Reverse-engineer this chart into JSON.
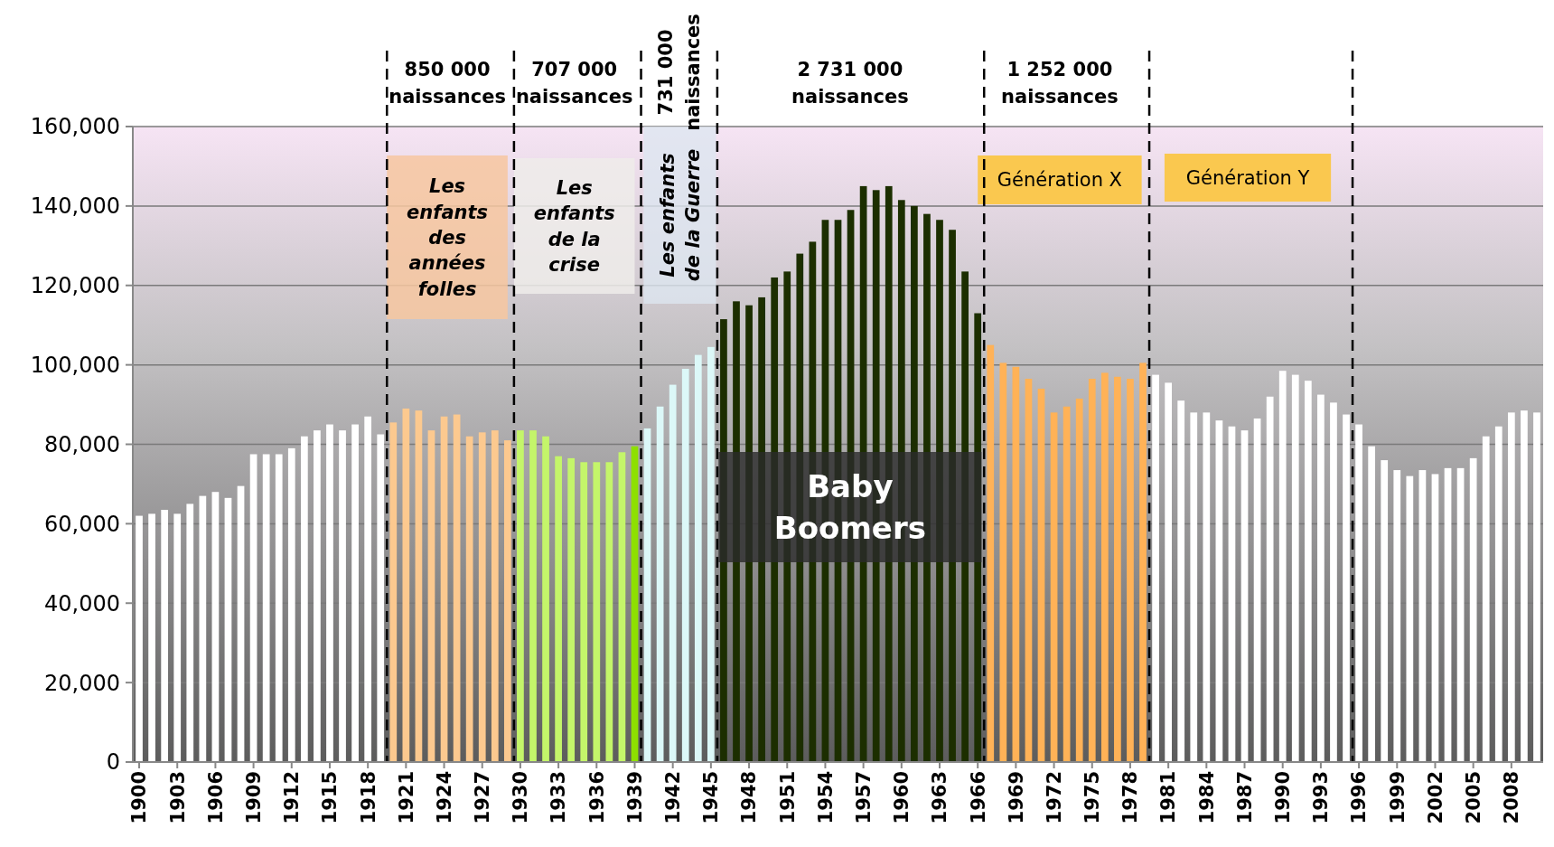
{
  "chart_data": {
    "type": "bar",
    "x": [
      1900,
      1901,
      1902,
      1903,
      1904,
      1905,
      1906,
      1907,
      1908,
      1909,
      1910,
      1911,
      1912,
      1913,
      1914,
      1915,
      1916,
      1917,
      1918,
      1919,
      1920,
      1921,
      1922,
      1923,
      1924,
      1925,
      1926,
      1927,
      1928,
      1929,
      1930,
      1931,
      1932,
      1933,
      1934,
      1935,
      1936,
      1937,
      1938,
      1939,
      1940,
      1941,
      1942,
      1943,
      1944,
      1945,
      1946,
      1947,
      1948,
      1949,
      1950,
      1951,
      1952,
      1953,
      1954,
      1955,
      1956,
      1957,
      1958,
      1959,
      1960,
      1961,
      1962,
      1963,
      1964,
      1965,
      1966,
      1967,
      1968,
      1969,
      1970,
      1971,
      1972,
      1973,
      1974,
      1975,
      1976,
      1977,
      1978,
      1979,
      1980,
      1981,
      1982,
      1983,
      1984,
      1985,
      1986,
      1987,
      1988,
      1989,
      1990,
      1991,
      1992,
      1993,
      1994,
      1995,
      1996,
      1997,
      1998,
      1999,
      2000,
      2001,
      2002,
      2003,
      2004,
      2005,
      2006,
      2007,
      2008,
      2009,
      2010
    ],
    "values": [
      62000,
      62500,
      63500,
      62500,
      65000,
      67000,
      68000,
      66500,
      69500,
      77500,
      77500,
      77500,
      79000,
      82000,
      83500,
      85000,
      83500,
      85000,
      87000,
      82500,
      85500,
      89000,
      88500,
      83500,
      87000,
      87500,
      82000,
      83000,
      83500,
      81000,
      83500,
      83500,
      82000,
      77000,
      76500,
      75500,
      75500,
      75500,
      78000,
      79500,
      84000,
      89500,
      95000,
      99000,
      102500,
      104500,
      111500,
      116000,
      115000,
      117000,
      122000,
      123500,
      128000,
      131000,
      136500,
      136500,
      139000,
      145000,
      144000,
      145000,
      141500,
      140000,
      138000,
      136500,
      134000,
      123500,
      113000,
      105000,
      100500,
      99500,
      96500,
      94000,
      88000,
      89500,
      91500,
      96500,
      98000,
      97000,
      96500,
      100500,
      97500,
      95500,
      91000,
      88000,
      88000,
      86000,
      84500,
      83500,
      86500,
      92000,
      98500,
      97500,
      96000,
      92500,
      90500,
      87500,
      85000,
      79500,
      76000,
      73500,
      72000,
      73500,
      72500,
      74000,
      74000,
      76500,
      82000,
      84500,
      88000,
      88500,
      88000
    ],
    "colors": [
      "#ffffff",
      "#ffffff",
      "#ffffff",
      "#ffffff",
      "#ffffff",
      "#ffffff",
      "#ffffff",
      "#ffffff",
      "#ffffff",
      "#ffffff",
      "#ffffff",
      "#ffffff",
      "#ffffff",
      "#ffffff",
      "#ffffff",
      "#ffffff",
      "#ffffff",
      "#ffffff",
      "#ffffff",
      "#ffffff",
      "#fcc98f",
      "#fcc98f",
      "#fcc98f",
      "#fcc98f",
      "#fcc98f",
      "#fcc98f",
      "#fcc98f",
      "#fcc98f",
      "#fcc98f",
      "#fcc98f",
      "#c4f56a",
      "#c4f56a",
      "#c4f56a",
      "#c4f56a",
      "#c4f56a",
      "#c4f56a",
      "#c4f56a",
      "#c4f56a",
      "#c4f56a",
      "#8ee000",
      "#dcf8f8",
      "#dcf8f8",
      "#dcf8f8",
      "#dcf8f8",
      "#dcf8f8",
      "#dcf8f8",
      "#1c2e00",
      "#1c2e00",
      "#1c2e00",
      "#1c2e00",
      "#1c2e00",
      "#1c2e00",
      "#1c2e00",
      "#1c2e00",
      "#1c2e00",
      "#1c2e00",
      "#1c2e00",
      "#1c2e00",
      "#1c2e00",
      "#1c2e00",
      "#1c2e00",
      "#1c2e00",
      "#1c2e00",
      "#1c2e00",
      "#1c2e00",
      "#1c2e00",
      "#1c2e00",
      "#ffb257",
      "#ffb257",
      "#ffb257",
      "#ffb257",
      "#ffb257",
      "#ffb257",
      "#ffb257",
      "#ffb257",
      "#ffb257",
      "#ffb257",
      "#ffb257",
      "#ffb257",
      "#ffb257",
      "#ffffff",
      "#ffffff",
      "#ffffff",
      "#ffffff",
      "#ffffff",
      "#ffffff",
      "#ffffff",
      "#ffffff",
      "#ffffff",
      "#ffffff",
      "#ffffff",
      "#ffffff",
      "#ffffff",
      "#ffffff",
      "#ffffff",
      "#ffffff",
      "#ffffff",
      "#ffffff",
      "#ffffff",
      "#ffffff",
      "#ffffff",
      "#ffffff",
      "#ffffff",
      "#ffffff",
      "#ffffff",
      "#ffffff",
      "#ffffff",
      "#ffffff",
      "#ffffff",
      "#ffffff",
      "#ffffff"
    ],
    "xlim": [
      1899.5,
      2010.5
    ],
    "xticks": [
      1900,
      1903,
      1906,
      1909,
      1912,
      1915,
      1918,
      1921,
      1924,
      1927,
      1930,
      1933,
      1936,
      1939,
      1942,
      1945,
      1948,
      1951,
      1954,
      1957,
      1960,
      1963,
      1966,
      1969,
      1972,
      1975,
      1978,
      1981,
      1984,
      1987,
      1990,
      1993,
      1996,
      1999,
      2002,
      2005,
      2008
    ],
    "ylim": [
      0,
      160000
    ],
    "yticks": [
      {
        "value": 0,
        "label": "0"
      },
      {
        "value": 20000,
        "label": "20,000"
      },
      {
        "value": 40000,
        "label": "40,000"
      },
      {
        "value": 60000,
        "label": "60,000"
      },
      {
        "value": 80000,
        "label": "80,000"
      },
      {
        "value": 100000,
        "label": "100,000"
      },
      {
        "value": 120000,
        "label": "120,000"
      },
      {
        "value": 140000,
        "label": "140,000"
      },
      {
        "value": 160000,
        "label": "160,000"
      }
    ],
    "grid": "y",
    "ref_lines": [
      {
        "axis": "x",
        "value": 1919.5,
        "color": "#000000",
        "line_style": "dashed"
      },
      {
        "axis": "x",
        "value": 1929.5,
        "color": "#000000",
        "line_style": "dashed"
      },
      {
        "axis": "x",
        "value": 1939.5,
        "color": "#000000",
        "line_style": "dashed"
      },
      {
        "axis": "x",
        "value": 1945.5,
        "color": "#000000",
        "line_style": "dashed"
      },
      {
        "axis": "x",
        "value": 1966.5,
        "color": "#000000",
        "line_style": "dashed"
      },
      {
        "axis": "x",
        "value": 1979.5,
        "color": "#000000",
        "line_style": "dashed"
      },
      {
        "axis": "x",
        "value": 1995.5,
        "color": "#000000",
        "line_style": "dashed"
      }
    ],
    "bands": [
      {
        "axis": "x",
        "from": 1919.5,
        "to": 1929,
        "label": "Les enfants des années folles",
        "color": "#f7c7a0"
      },
      {
        "axis": "x",
        "from": 1929.5,
        "to": 1939,
        "label": "Les enfants de la crise",
        "color": "#eeecea"
      },
      {
        "axis": "x",
        "from": 1939.7,
        "to": 1945.4,
        "label": "Les enfants de la Guerre",
        "color": "#dde6f0"
      },
      {
        "axis": "x",
        "from": 1945.6,
        "to": 1966.3,
        "label": "Baby Boomers",
        "color": "#2a2a2a"
      },
      {
        "axis": "x",
        "from": 1966,
        "to": 1978.9,
        "label": "Génération X",
        "color": "#fac84f"
      },
      {
        "axis": "x",
        "from": 1980.7,
        "to": 1993.8,
        "label": "Génération Y",
        "color": "#fac84f"
      }
    ],
    "annotations": [
      "850 000 naissances",
      "707 000 naissances",
      "731 000 naissances",
      "2 731 000 naissances",
      "1 252 000 naissances"
    ]
  }
}
